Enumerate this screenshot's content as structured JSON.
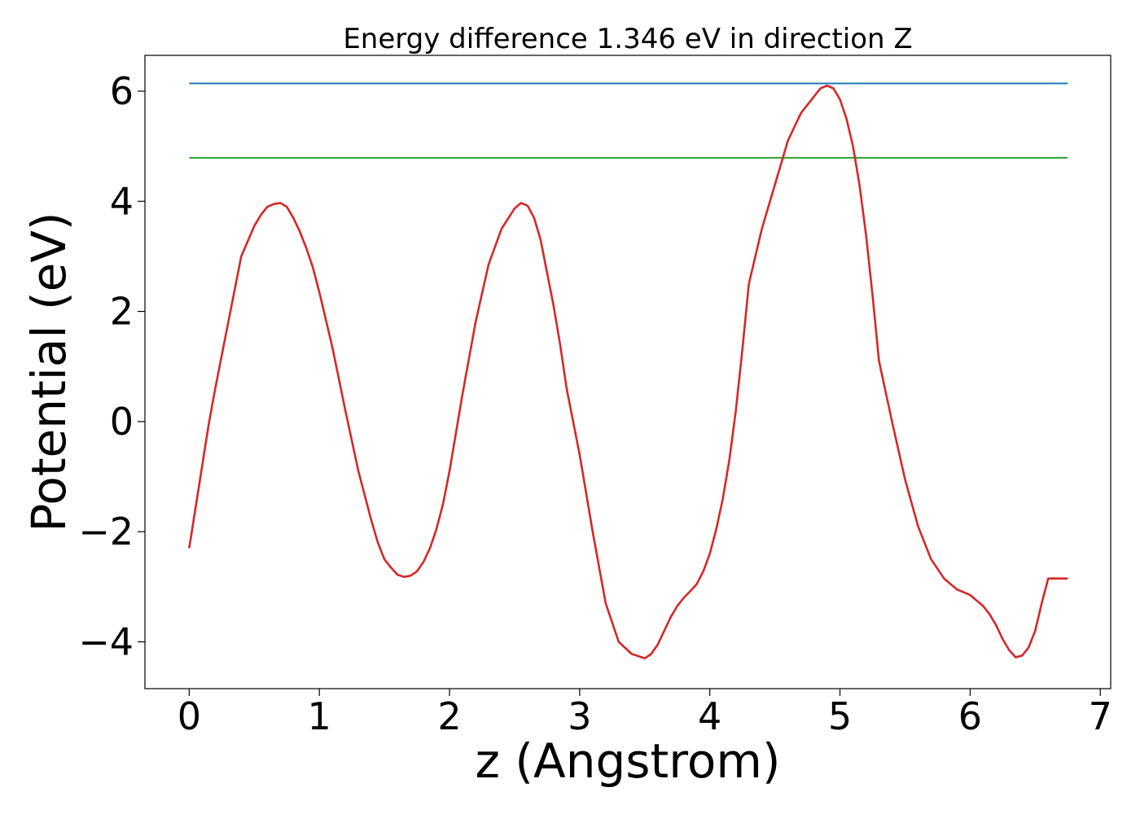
{
  "chart_data": {
    "type": "line",
    "title": "Energy difference 1.346 eV in direction Z",
    "xlabel": "z (Angstrom)",
    "ylabel": "Potential (eV)",
    "xlim": [
      -0.34,
      7.08
    ],
    "ylim": [
      -4.85,
      6.65
    ],
    "xticks": [
      0,
      1,
      2,
      3,
      4,
      5,
      6,
      7
    ],
    "yticks": [
      -4,
      -2,
      0,
      2,
      4,
      6
    ],
    "xtick_labels": [
      "0",
      "1",
      "2",
      "3",
      "4",
      "5",
      "6",
      "7"
    ],
    "ytick_labels": [
      "−4",
      "−2",
      "0",
      "2",
      "4",
      "6"
    ],
    "grid": false,
    "legend": "none",
    "series": [
      {
        "color": "#1f77b4",
        "x": [
          0,
          6.75
        ],
        "y": [
          6.14,
          6.14
        ]
      },
      {
        "color": "#2ca02c",
        "x": [
          0,
          6.75
        ],
        "y": [
          4.79,
          4.79
        ]
      },
      {
        "color": "#d62728",
        "x": [
          0,
          0.05,
          0.1,
          0.15,
          0.2,
          0.3,
          0.4,
          0.5,
          0.55,
          0.6,
          0.65,
          0.7,
          0.75,
          0.8,
          0.85,
          0.9,
          0.95,
          1.0,
          1.05,
          1.1,
          1.2,
          1.3,
          1.4,
          1.45,
          1.5,
          1.55,
          1.6,
          1.65,
          1.7,
          1.75,
          1.8,
          1.85,
          1.9,
          1.95,
          2.0,
          2.1,
          2.2,
          2.3,
          2.4,
          2.5,
          2.55,
          2.6,
          2.65,
          2.7,
          2.75,
          2.8,
          2.85,
          2.9,
          3.0,
          3.1,
          3.2,
          3.3,
          3.4,
          3.5,
          3.55,
          3.6,
          3.65,
          3.7,
          3.75,
          3.8,
          3.85,
          3.9,
          3.95,
          4.0,
          4.05,
          4.1,
          4.15,
          4.2,
          4.25,
          4.3,
          4.4,
          4.5,
          4.6,
          4.7,
          4.8,
          4.85,
          4.9,
          4.95,
          5.0,
          5.05,
          5.1,
          5.15,
          5.2,
          5.25,
          5.3,
          5.4,
          5.5,
          5.6,
          5.7,
          5.8,
          5.9,
          6.0,
          6.05,
          6.1,
          6.15,
          6.2,
          6.25,
          6.3,
          6.35,
          6.4,
          6.45,
          6.5,
          6.55,
          6.6,
          6.65,
          6.7,
          6.75
        ],
        "y": [
          -2.3,
          -1.55,
          -0.8,
          -0.05,
          0.6,
          1.8,
          3.0,
          3.55,
          3.75,
          3.9,
          3.95,
          3.97,
          3.9,
          3.7,
          3.45,
          3.15,
          2.8,
          2.35,
          1.85,
          1.35,
          0.2,
          -0.9,
          -1.8,
          -2.2,
          -2.5,
          -2.65,
          -2.78,
          -2.82,
          -2.8,
          -2.72,
          -2.55,
          -2.3,
          -1.95,
          -1.5,
          -0.9,
          0.5,
          1.8,
          2.85,
          3.5,
          3.87,
          3.97,
          3.92,
          3.7,
          3.3,
          2.7,
          2.1,
          1.4,
          0.6,
          -0.6,
          -2.0,
          -3.3,
          -4.0,
          -4.22,
          -4.3,
          -4.22,
          -4.05,
          -3.8,
          -3.55,
          -3.35,
          -3.2,
          -3.08,
          -2.95,
          -2.72,
          -2.4,
          -1.95,
          -1.4,
          -0.7,
          0.2,
          1.3,
          2.5,
          3.5,
          4.3,
          5.1,
          5.6,
          5.9,
          6.05,
          6.1,
          6.05,
          5.85,
          5.5,
          5.0,
          4.3,
          3.4,
          2.3,
          1.1,
          0.0,
          -1.05,
          -1.9,
          -2.5,
          -2.85,
          -3.05,
          -3.15,
          -3.25,
          -3.35,
          -3.5,
          -3.7,
          -3.95,
          -4.15,
          -4.28,
          -4.25,
          -4.1,
          -3.8,
          -3.3,
          -2.85,
          -2.85,
          -2.85,
          -2.85
        ]
      }
    ]
  }
}
